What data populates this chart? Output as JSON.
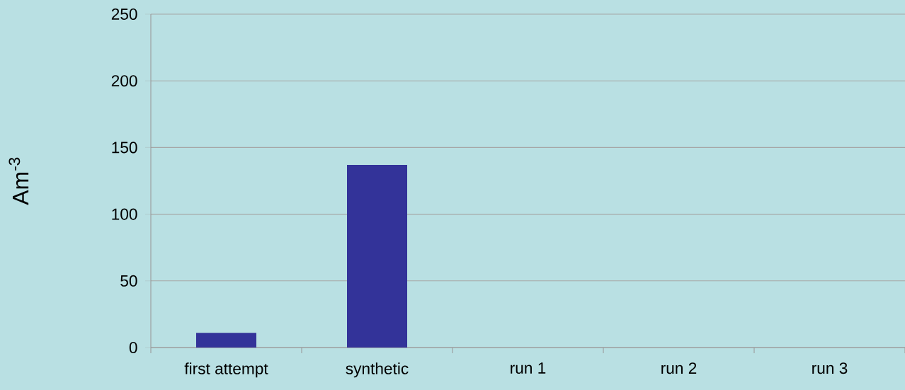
{
  "chart_data": {
    "type": "bar",
    "ylabel": "Am$^{-3}$",
    "categories": [
      "first attempt",
      "synthetic",
      "run 1",
      "run 2",
      "run 3"
    ],
    "values": [
      11,
      137,
      null,
      null,
      null
    ],
    "color": "#333399",
    "ylim": [
      0,
      250
    ],
    "yticks": [
      0,
      50,
      100,
      150,
      200,
      250
    ],
    "grid": "y"
  }
}
